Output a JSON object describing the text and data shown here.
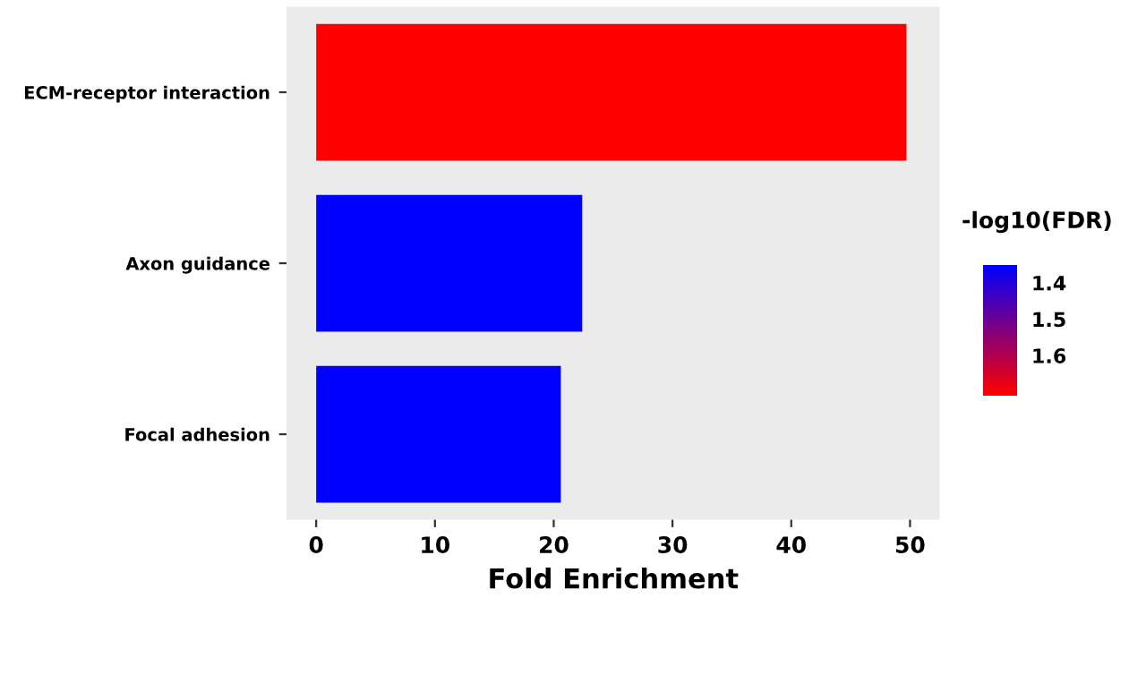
{
  "chart_data": {
    "type": "bar",
    "orientation": "horizontal",
    "categories": [
      "ECM-receptor interaction",
      "Axon guidance",
      "Focal adhesion"
    ],
    "values": [
      49.7,
      22.4,
      20.6
    ],
    "colors": [
      "#ff0000",
      "#0000ff",
      "#0000ff"
    ],
    "xlabel": "Fold Enrichment",
    "xlim": [
      -2.5,
      52.5
    ],
    "xticks": [
      0,
      10,
      20,
      30,
      40,
      50
    ],
    "clabel": "-log10(FDR)",
    "clim": [
      1.35,
      1.71
    ],
    "cticks": [
      1.4,
      1.5,
      1.6
    ],
    "grid": false
  }
}
